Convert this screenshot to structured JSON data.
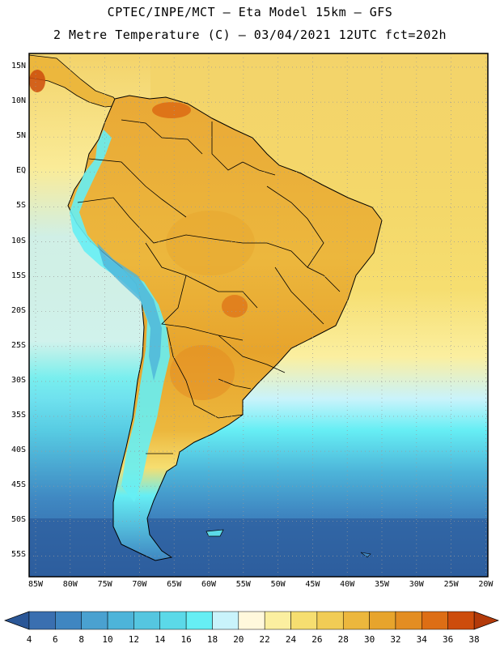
{
  "title_line1": "CPTEC/INPE/MCT –  Eta Model 15km – GFS",
  "title_line2": "2 Metre Temperature (C) – 03/04/2021 12UTC fct=202h",
  "lat_labels": [
    "15N",
    "10N",
    "5N",
    "EQ",
    "5S",
    "10S",
    "15S",
    "20S",
    "25S",
    "30S",
    "35S",
    "40S",
    "45S",
    "50S",
    "55S"
  ],
  "lon_labels": [
    "85W",
    "80W",
    "75W",
    "70W",
    "65W",
    "60W",
    "55W",
    "50W",
    "45W",
    "40W",
    "35W",
    "30W",
    "25W",
    "20W"
  ],
  "colorbar": {
    "labels": [
      "4",
      "6",
      "8",
      "10",
      "12",
      "14",
      "16",
      "18",
      "20",
      "22",
      "24",
      "26",
      "28",
      "30",
      "32",
      "34",
      "36",
      "38"
    ],
    "colors": [
      "#3a6fb0",
      "#3f86c1",
      "#4aa1d0",
      "#4db4d9",
      "#55c6e0",
      "#5bd9e8",
      "#66eef4",
      "#c9f3fb",
      "#fff8dc",
      "#fbefa0",
      "#f6de70",
      "#f1cc55",
      "#ecb73d",
      "#e7a42c",
      "#e38d22",
      "#dd6e15",
      "#cd4c0c"
    ],
    "low_color": "#2b5797",
    "high_color": "#b33a0a"
  },
  "colors": {
    "ocean_cold": "#2d5e9e",
    "ocean_cool": "#4aa1d0",
    "ocean_mid": "#5bd9e8",
    "ocean_warm": "#f4d86a",
    "land_warm": "#ecb73d",
    "land_hot": "#dd6e15",
    "andes": "#66eef4",
    "border": "#000000",
    "grid": "#9a9a9a"
  }
}
